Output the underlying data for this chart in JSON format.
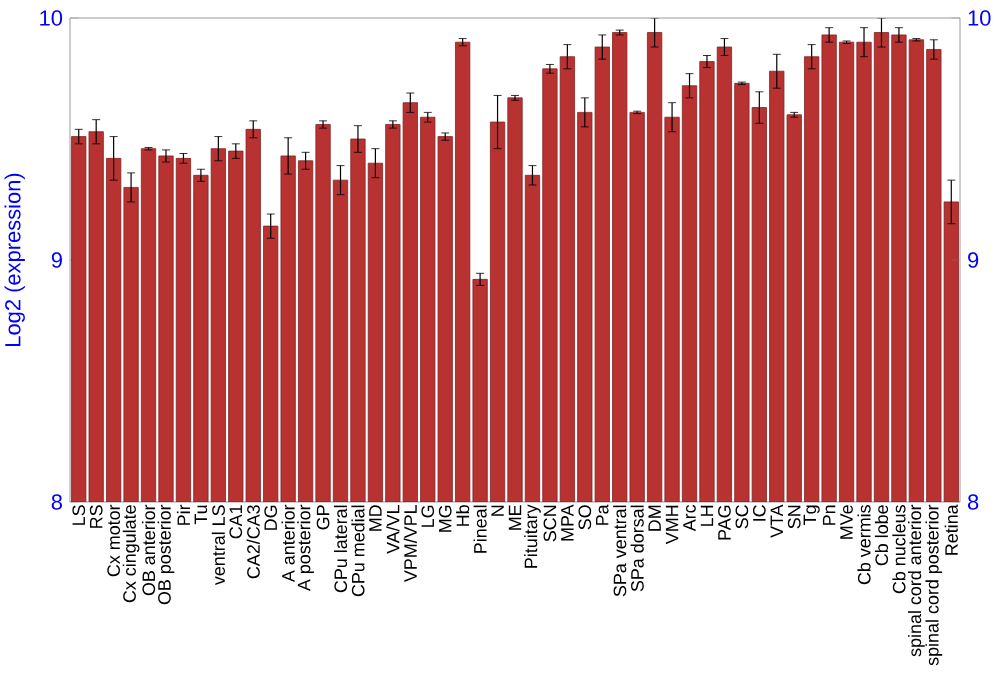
{
  "chart_data": {
    "type": "bar",
    "ylabel": "Log2 (expression)",
    "categories": [
      "LS",
      "RS",
      "Cx motor",
      "Cx cingulate",
      "OB anterior",
      "OB posterior",
      "Pir",
      "Tu",
      "ventral LS",
      "CA1",
      "CA2/CA3",
      "DG",
      "A anterior",
      "A posterior",
      "GP",
      "CPu lateral",
      "CPu medial",
      "MD",
      "VA/VL",
      "VPM/VPL",
      "LG",
      "MG",
      "Hb",
      "Pineal",
      "N",
      "ME",
      "Pituitary",
      "SCN",
      "MPA",
      "SO",
      "Pa",
      "SPa ventral",
      "SPa dorsal",
      "DM",
      "VMH",
      "Arc",
      "LH",
      "PAG",
      "SC",
      "IC",
      "VTA",
      "SN",
      "Tg",
      "Pn",
      "MVe",
      "Cb vermis",
      "Cb lobe",
      "Cb nucleus",
      "spinal cord anterior",
      "spinal cord posterior",
      "Retina"
    ],
    "values": [
      9.51,
      9.53,
      9.42,
      9.3,
      9.46,
      9.43,
      9.42,
      9.35,
      9.46,
      9.45,
      9.54,
      9.14,
      9.43,
      9.41,
      9.56,
      9.33,
      9.5,
      9.4,
      9.56,
      9.65,
      9.59,
      9.51,
      9.9,
      8.92,
      9.57,
      9.67,
      9.35,
      9.79,
      9.84,
      9.61,
      9.88,
      9.94,
      9.61,
      9.94,
      9.59,
      9.72,
      9.82,
      9.88,
      9.73,
      9.63,
      9.78,
      9.6,
      9.84,
      9.93,
      9.9,
      9.9,
      9.94,
      9.93,
      9.91,
      9.87,
      9.24
    ],
    "errors": [
      0.03,
      0.05,
      0.09,
      0.06,
      0.005,
      0.025,
      0.02,
      0.025,
      0.05,
      0.03,
      0.035,
      0.05,
      0.075,
      0.035,
      0.015,
      0.06,
      0.055,
      0.06,
      0.015,
      0.04,
      0.02,
      0.015,
      0.015,
      0.025,
      0.11,
      0.01,
      0.04,
      0.018,
      0.05,
      0.06,
      0.05,
      0.01,
      0.005,
      0.06,
      0.06,
      0.05,
      0.025,
      0.035,
      0.005,
      0.065,
      0.07,
      0.01,
      0.05,
      0.03,
      0.005,
      0.06,
      0.06,
      0.03,
      0.005,
      0.04,
      0.09
    ],
    "color": "#b83232",
    "ylim": [
      8,
      10
    ],
    "yticks": [
      8,
      9,
      10
    ],
    "y2lim": [
      8,
      10
    ],
    "y2ticks": [
      8,
      9,
      10
    ]
  }
}
